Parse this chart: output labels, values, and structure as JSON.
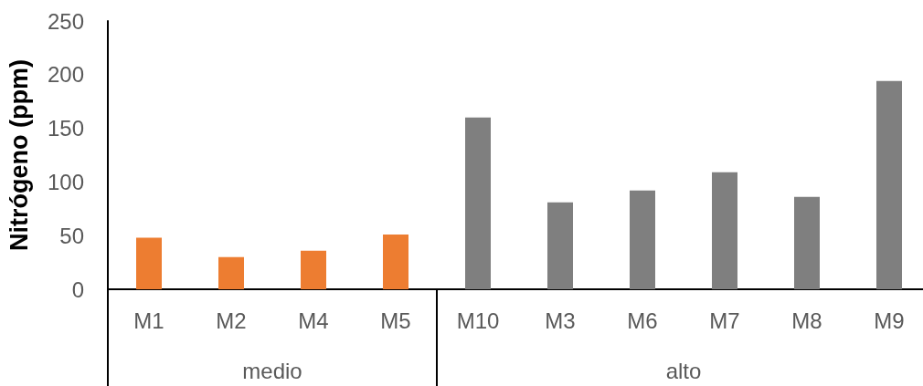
{
  "chart_data": {
    "type": "bar",
    "ylabel": "Nitrógeno (ppm)",
    "categories": [
      "M1",
      "M2",
      "M4",
      "M5",
      "M10",
      "M3",
      "M6",
      "M7",
      "M8",
      "M9"
    ],
    "series": [
      {
        "color": "#ed7d31",
        "values": [
          48,
          30,
          36,
          51,
          null,
          null,
          null,
          null,
          null,
          null
        ]
      },
      {
        "color": "#7f7f7f",
        "values": [
          null,
          null,
          null,
          null,
          160,
          81,
          92,
          109,
          86,
          194
        ]
      }
    ],
    "annotations": [
      "medio",
      "alto"
    ],
    "ylim": [
      0,
      250
    ],
    "yticks": [
      0,
      50,
      100,
      150,
      200,
      250
    ],
    "grid": false
  }
}
